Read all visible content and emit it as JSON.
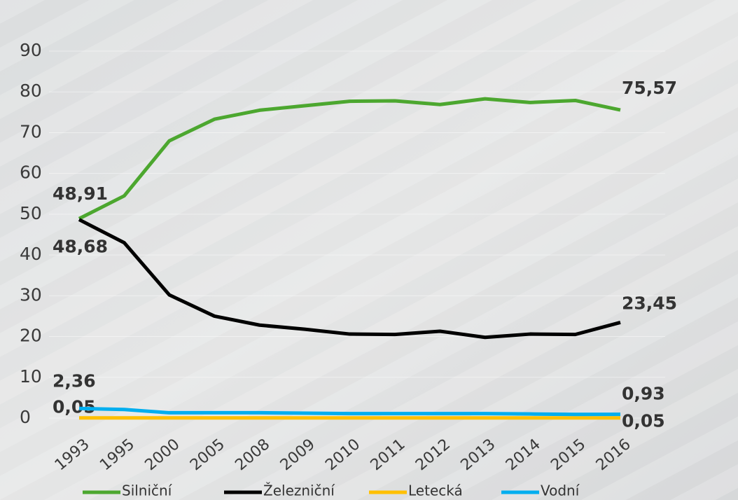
{
  "chart_data": {
    "type": "line",
    "categories": [
      "1993",
      "1995",
      "2000",
      "2005",
      "2008",
      "2009",
      "2010",
      "2011",
      "2012",
      "2013",
      "2014",
      "2015",
      "2016"
    ],
    "series": [
      {
        "name": "Silniční",
        "color": "#4ca72f",
        "values": [
          48.91,
          54.5,
          68,
          73.3,
          75.5,
          76.6,
          77.7,
          77.8,
          76.9,
          78.3,
          77.4,
          77.9,
          75.57
        ],
        "value_labels": [
          "48,91",
          null,
          null,
          null,
          null,
          null,
          null,
          null,
          null,
          null,
          null,
          null,
          "75,57"
        ]
      },
      {
        "name": "Železniční",
        "color": "#000000",
        "values": [
          48.68,
          43,
          30.2,
          25,
          22.8,
          21.8,
          20.6,
          20.5,
          21.3,
          19.8,
          20.6,
          20.5,
          23.45
        ],
        "value_labels": [
          "48,68",
          null,
          null,
          null,
          null,
          null,
          null,
          null,
          null,
          null,
          null,
          null,
          "23,45"
        ]
      },
      {
        "name": "Letecká",
        "color": "#ffc000",
        "values": [
          0.05,
          0.05,
          0.05,
          0.05,
          0.05,
          0.05,
          0.05,
          0.05,
          0.05,
          0.05,
          0.05,
          0.05,
          0.05
        ],
        "value_labels": [
          "0,05",
          null,
          null,
          null,
          null,
          null,
          null,
          null,
          null,
          null,
          null,
          null,
          "0,05"
        ]
      },
      {
        "name": "Vodní",
        "color": "#00aeef",
        "values": [
          2.36,
          2.1,
          1.3,
          1.3,
          1.3,
          1.2,
          1.1,
          1.1,
          1.1,
          1.1,
          1.0,
          0.9,
          0.93
        ],
        "value_labels": [
          "2,36",
          null,
          null,
          null,
          null,
          null,
          null,
          null,
          null,
          null,
          null,
          null,
          "0,93"
        ]
      }
    ],
    "ylim": [
      0,
      90
    ],
    "yticks": [
      0,
      10,
      20,
      30,
      40,
      50,
      60,
      70,
      80,
      90
    ],
    "grid": true
  }
}
